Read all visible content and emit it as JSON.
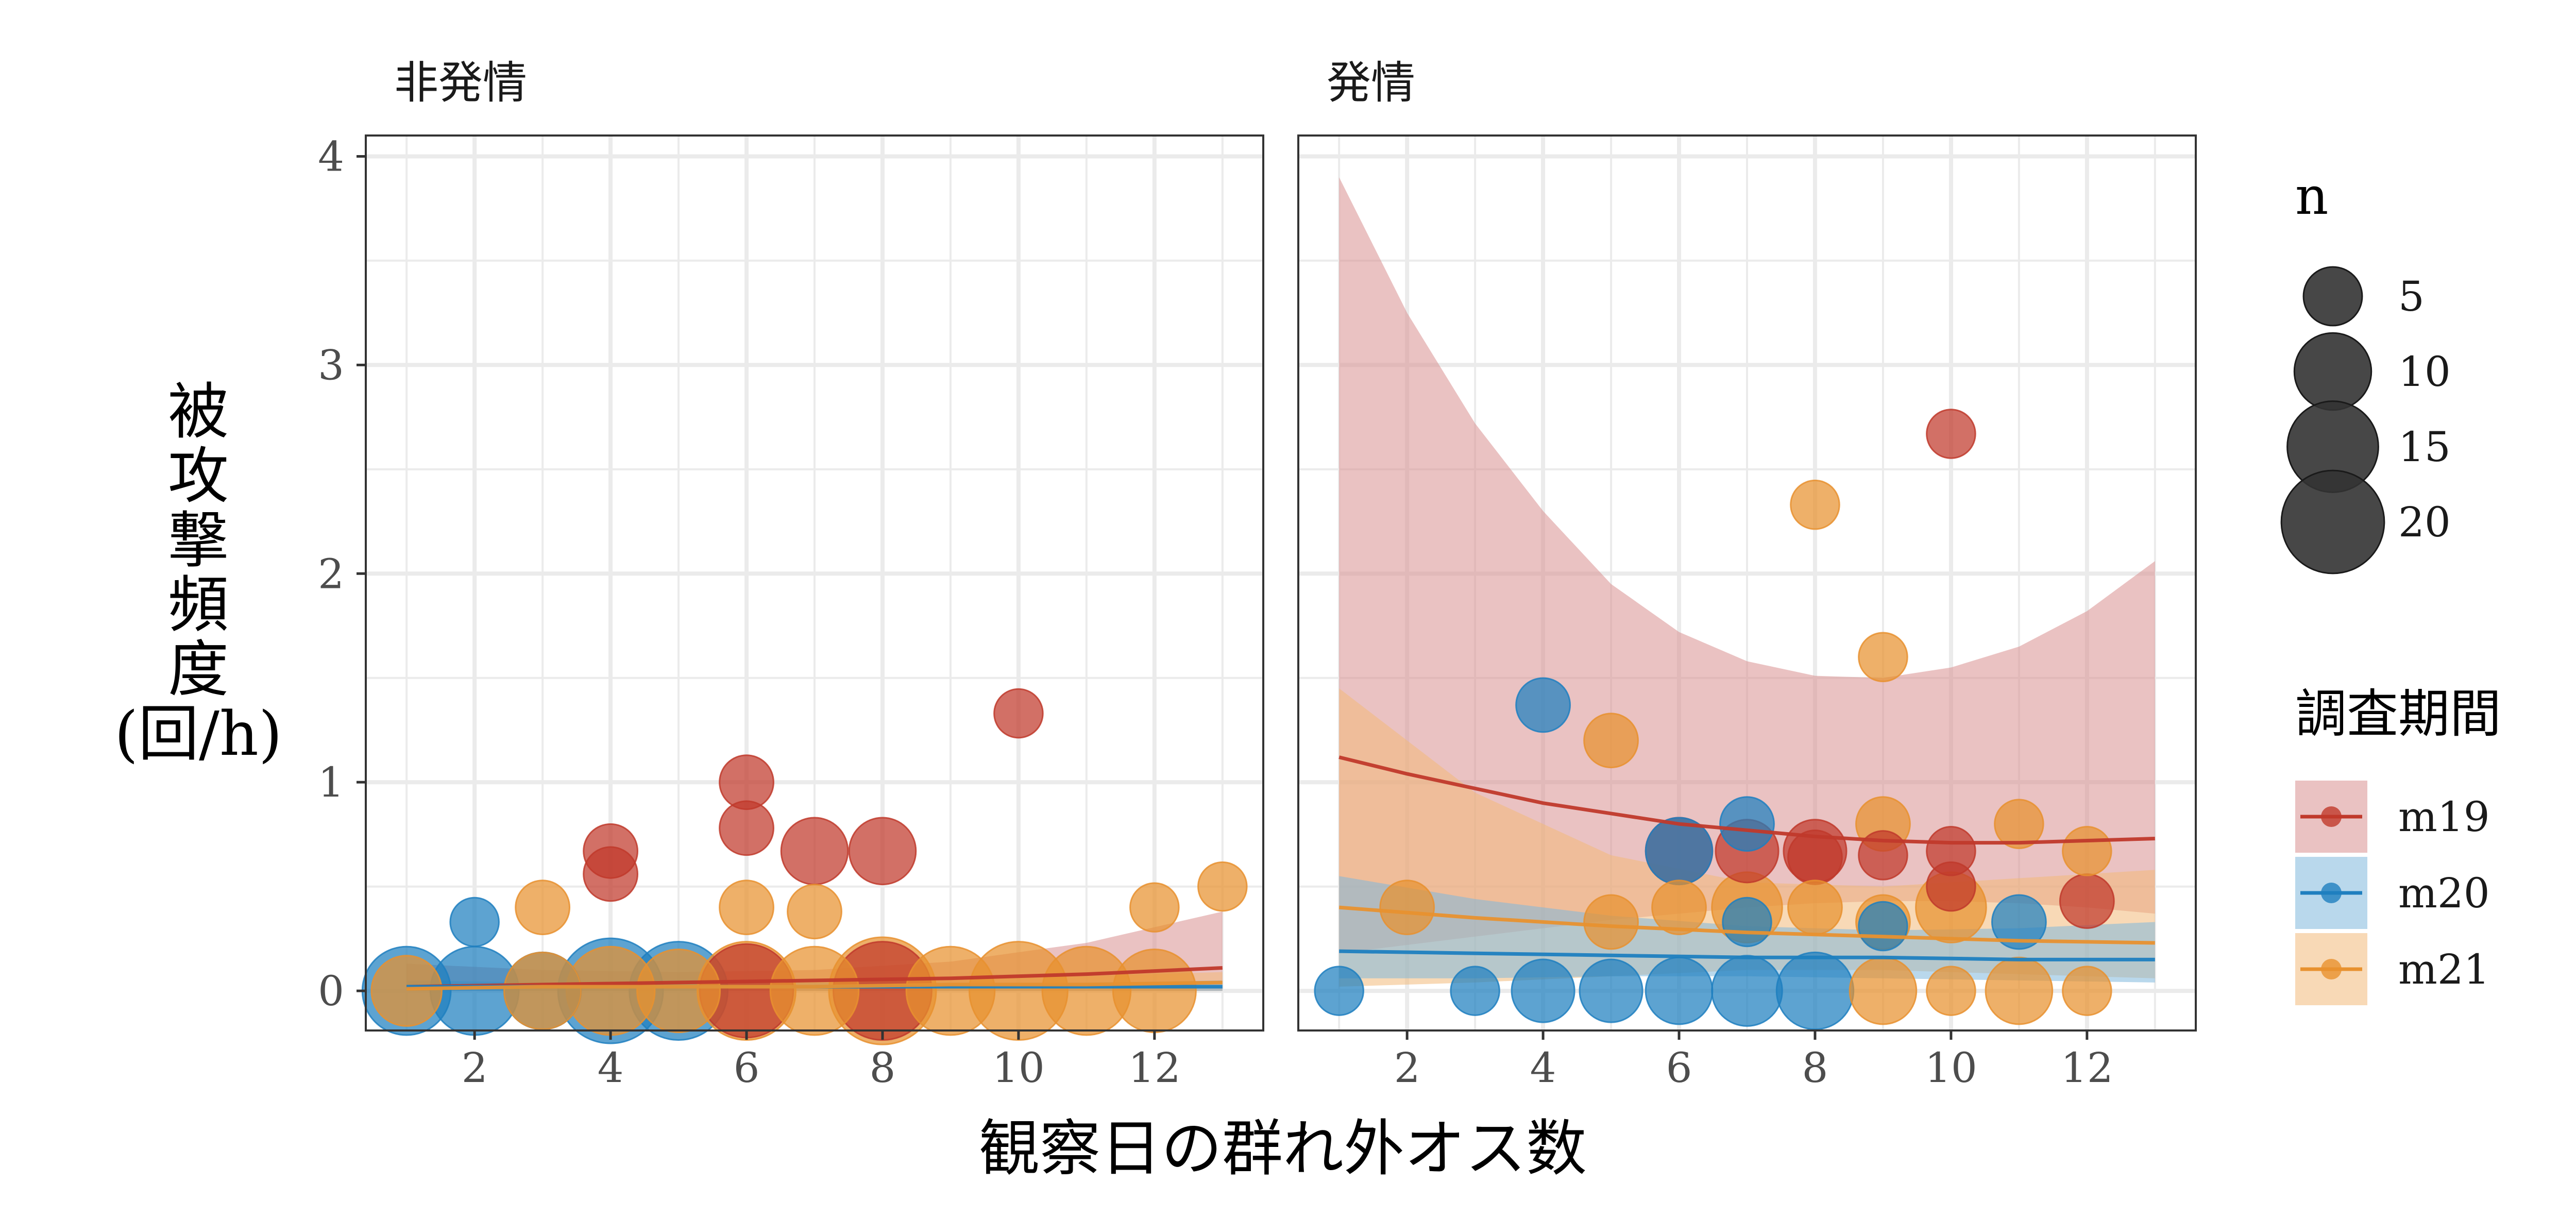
{
  "chart_data": {
    "type": "scatter",
    "title": "",
    "xlabel": "観察日の群れ外オス数",
    "ylabel": [
      "被",
      "攻",
      "撃",
      "頻",
      "度",
      "(回/h)"
    ],
    "xlim": [
      0.4,
      13.6
    ],
    "ylim": [
      -0.19,
      4.1
    ],
    "x_ticks": [
      2,
      4,
      6,
      8,
      10,
      12
    ],
    "x_tick_labels": [
      "2",
      "4",
      "6",
      "8",
      "10",
      "12"
    ],
    "y_ticks": [
      0,
      1,
      2,
      3,
      4
    ],
    "y_tick_labels": [
      "0",
      "1",
      "2",
      "3",
      "4"
    ],
    "grid": true,
    "legend_position": "right",
    "size_legend": {
      "title": "n",
      "entries": [
        {
          "value": 5,
          "label": "5"
        },
        {
          "value": 10,
          "label": "10"
        },
        {
          "value": 15,
          "label": "15"
        },
        {
          "value": 20,
          "label": "20"
        }
      ]
    },
    "color_legend": {
      "title": "調査期間",
      "entries": [
        {
          "key": "m19",
          "label": "m19"
        },
        {
          "key": "m20",
          "label": "m20"
        },
        {
          "key": "m21",
          "label": "m21"
        }
      ]
    },
    "series_colors": {
      "m19": "#c0392b",
      "m20": "#1f7fbf",
      "m21": "#e8912f"
    },
    "band_fill": {
      "m19": "#d98f8f",
      "m20": "#7fb8dc",
      "m21": "#f2b97a"
    },
    "panels": [
      {
        "strip": "非発情",
        "points": [
          {
            "s": "m19",
            "x": 4,
            "y": 0.67,
            "n": 4
          },
          {
            "s": "m19",
            "x": 4,
            "y": 0.56,
            "n": 4
          },
          {
            "s": "m19",
            "x": 6,
            "y": 1.0,
            "n": 4
          },
          {
            "s": "m19",
            "x": 6,
            "y": 0.78,
            "n": 4
          },
          {
            "s": "m19",
            "x": 7,
            "y": 0.67,
            "n": 7
          },
          {
            "s": "m19",
            "x": 8,
            "y": 0.67,
            "n": 7
          },
          {
            "s": "m19",
            "x": 10,
            "y": 1.33,
            "n": 3
          },
          {
            "s": "m19",
            "x": 6,
            "y": 0.0,
            "n": 16
          },
          {
            "s": "m19",
            "x": 8,
            "y": 0.0,
            "n": 18
          },
          {
            "s": "m20",
            "x": 1,
            "y": 0.0,
            "n": 14
          },
          {
            "s": "m20",
            "x": 2,
            "y": 0.33,
            "n": 3
          },
          {
            "s": "m20",
            "x": 2,
            "y": 0.0,
            "n": 14
          },
          {
            "s": "m20",
            "x": 3,
            "y": 0.0,
            "n": 10
          },
          {
            "s": "m20",
            "x": 4,
            "y": 0.0,
            "n": 21
          },
          {
            "s": "m20",
            "x": 5,
            "y": 0.0,
            "n": 18
          },
          {
            "s": "m21",
            "x": 1,
            "y": 0.0,
            "n": 8
          },
          {
            "s": "m21",
            "x": 3,
            "y": 0.4,
            "n": 4
          },
          {
            "s": "m21",
            "x": 3,
            "y": 0.0,
            "n": 10
          },
          {
            "s": "m21",
            "x": 4,
            "y": 0.0,
            "n": 14
          },
          {
            "s": "m21",
            "x": 5,
            "y": 0.0,
            "n": 12
          },
          {
            "s": "m21",
            "x": 6,
            "y": 0.4,
            "n": 4
          },
          {
            "s": "m21",
            "x": 6,
            "y": 0.0,
            "n": 18
          },
          {
            "s": "m21",
            "x": 7,
            "y": 0.38,
            "n": 4
          },
          {
            "s": "m21",
            "x": 7,
            "y": 0.0,
            "n": 14
          },
          {
            "s": "m21",
            "x": 8,
            "y": 0.0,
            "n": 22
          },
          {
            "s": "m21",
            "x": 9,
            "y": 0.0,
            "n": 14
          },
          {
            "s": "m21",
            "x": 10,
            "y": 0.0,
            "n": 18
          },
          {
            "s": "m21",
            "x": 11,
            "y": 0.0,
            "n": 14
          },
          {
            "s": "m21",
            "x": 12,
            "y": 0.4,
            "n": 3
          },
          {
            "s": "m21",
            "x": 12,
            "y": 0.0,
            "n": 12
          },
          {
            "s": "m21",
            "x": 13,
            "y": 0.5,
            "n": 3
          }
        ],
        "fits": [
          {
            "s": "m19",
            "x": [
              1,
              3,
              5,
              7,
              9,
              11,
              13
            ],
            "y": [
              0.02,
              0.03,
              0.04,
              0.05,
              0.06,
              0.08,
              0.11
            ],
            "lower": [
              0.0,
              0.0,
              0.0,
              0.0,
              0.0,
              0.0,
              0.0
            ],
            "upper": [
              0.13,
              0.1,
              0.09,
              0.1,
              0.14,
              0.23,
              0.38
            ]
          },
          {
            "s": "m20",
            "x": [
              1,
              3,
              5,
              7,
              9,
              11,
              13
            ],
            "y": [
              0.02,
              0.02,
              0.02,
              0.02,
              0.02,
              0.02,
              0.02
            ],
            "lower": [
              0.0,
              0.0,
              0.0,
              0.0,
              0.0,
              0.0,
              0.0
            ],
            "upper": [
              0.05,
              0.04,
              0.04,
              0.04,
              0.04,
              0.04,
              0.05
            ]
          },
          {
            "s": "m21",
            "x": [
              1,
              3,
              5,
              7,
              9,
              11,
              13
            ],
            "y": [
              0.01,
              0.02,
              0.02,
              0.02,
              0.03,
              0.03,
              0.04
            ],
            "lower": [
              0.0,
              0.0,
              0.0,
              0.0,
              0.0,
              0.0,
              0.0
            ],
            "upper": [
              0.04,
              0.04,
              0.04,
              0.05,
              0.06,
              0.07,
              0.09
            ]
          }
        ]
      },
      {
        "strip": "発情",
        "points": [
          {
            "s": "m19",
            "x": 10,
            "y": 2.67,
            "n": 3
          },
          {
            "s": "m19",
            "x": 7,
            "y": 0.67,
            "n": 6
          },
          {
            "s": "m19",
            "x": 8,
            "y": 0.67,
            "n": 6
          },
          {
            "s": "m19",
            "x": 8,
            "y": 0.64,
            "n": 4
          },
          {
            "s": "m19",
            "x": 9,
            "y": 0.65,
            "n": 3
          },
          {
            "s": "m19",
            "x": 10,
            "y": 0.67,
            "n": 3
          },
          {
            "s": "m19",
            "x": 10,
            "y": 0.5,
            "n": 3
          },
          {
            "s": "m19",
            "x": 12,
            "y": 0.43,
            "n": 4
          },
          {
            "s": "m19",
            "x": 6,
            "y": 0.67,
            "n": 7
          },
          {
            "s": "m20",
            "x": 1,
            "y": 0.0,
            "n": 3
          },
          {
            "s": "m20",
            "x": 3,
            "y": 0.0,
            "n": 3
          },
          {
            "s": "m20",
            "x": 4,
            "y": 1.37,
            "n": 4
          },
          {
            "s": "m20",
            "x": 4,
            "y": 0.0,
            "n": 6
          },
          {
            "s": "m20",
            "x": 5,
            "y": 0.0,
            "n": 6
          },
          {
            "s": "m20",
            "x": 6,
            "y": 0.67,
            "n": 7
          },
          {
            "s": "m20",
            "x": 6,
            "y": 0.0,
            "n": 7
          },
          {
            "s": "m20",
            "x": 7,
            "y": 0.8,
            "n": 4
          },
          {
            "s": "m20",
            "x": 7,
            "y": 0.33,
            "n": 3
          },
          {
            "s": "m20",
            "x": 7,
            "y": 0.0,
            "n": 8
          },
          {
            "s": "m20",
            "x": 8,
            "y": 0.0,
            "n": 10
          },
          {
            "s": "m20",
            "x": 9,
            "y": 0.31,
            "n": 3
          },
          {
            "s": "m20",
            "x": 11,
            "y": 0.33,
            "n": 4
          },
          {
            "s": "m21",
            "x": 2,
            "y": 0.4,
            "n": 4
          },
          {
            "s": "m21",
            "x": 5,
            "y": 1.2,
            "n": 4
          },
          {
            "s": "m21",
            "x": 5,
            "y": 0.33,
            "n": 4
          },
          {
            "s": "m21",
            "x": 6,
            "y": 0.4,
            "n": 4
          },
          {
            "s": "m21",
            "x": 7,
            "y": 0.4,
            "n": 8
          },
          {
            "s": "m21",
            "x": 8,
            "y": 2.33,
            "n": 3
          },
          {
            "s": "m21",
            "x": 8,
            "y": 0.4,
            "n": 4
          },
          {
            "s": "m21",
            "x": 9,
            "y": 1.6,
            "n": 3
          },
          {
            "s": "m21",
            "x": 9,
            "y": 0.8,
            "n": 4
          },
          {
            "s": "m21",
            "x": 9,
            "y": 0.33,
            "n": 4
          },
          {
            "s": "m21",
            "x": 9,
            "y": 0.0,
            "n": 7
          },
          {
            "s": "m21",
            "x": 10,
            "y": 0.4,
            "n": 8
          },
          {
            "s": "m21",
            "x": 10,
            "y": 0.0,
            "n": 3
          },
          {
            "s": "m21",
            "x": 11,
            "y": 0.8,
            "n": 3
          },
          {
            "s": "m21",
            "x": 11,
            "y": 0.0,
            "n": 7
          },
          {
            "s": "m21",
            "x": 12,
            "y": 0.67,
            "n": 3
          },
          {
            "s": "m21",
            "x": 12,
            "y": 0.0,
            "n": 3
          }
        ],
        "fits": [
          {
            "s": "m19",
            "x": [
              1,
              2,
              3,
              4,
              5,
              6,
              7,
              8,
              9,
              10,
              11,
              12,
              13
            ],
            "y": [
              1.12,
              1.04,
              0.97,
              0.9,
              0.85,
              0.8,
              0.77,
              0.74,
              0.72,
              0.71,
              0.71,
              0.72,
              0.73
            ],
            "lower": [
              0.18,
              0.22,
              0.26,
              0.3,
              0.34,
              0.37,
              0.4,
              0.42,
              0.43,
              0.43,
              0.42,
              0.4,
              0.37
            ],
            "upper": [
              3.9,
              3.25,
              2.72,
              2.3,
              1.95,
              1.72,
              1.58,
              1.51,
              1.5,
              1.55,
              1.65,
              1.82,
              2.06
            ]
          },
          {
            "s": "m20",
            "x": [
              1,
              3,
              5,
              7,
              9,
              11,
              13
            ],
            "y": [
              0.19,
              0.18,
              0.17,
              0.16,
              0.16,
              0.15,
              0.15
            ],
            "lower": [
              0.06,
              0.06,
              0.07,
              0.07,
              0.06,
              0.05,
              0.04
            ],
            "upper": [
              0.55,
              0.44,
              0.36,
              0.31,
              0.29,
              0.3,
              0.33
            ]
          },
          {
            "s": "m21",
            "x": [
              1,
              3,
              5,
              7,
              9,
              11,
              13
            ],
            "y": [
              0.4,
              0.35,
              0.31,
              0.28,
              0.26,
              0.24,
              0.23
            ],
            "lower": [
              0.02,
              0.04,
              0.07,
              0.1,
              0.1,
              0.08,
              0.06
            ],
            "upper": [
              1.45,
              0.95,
              0.65,
              0.52,
              0.5,
              0.54,
              0.58
            ]
          }
        ]
      }
    ]
  }
}
